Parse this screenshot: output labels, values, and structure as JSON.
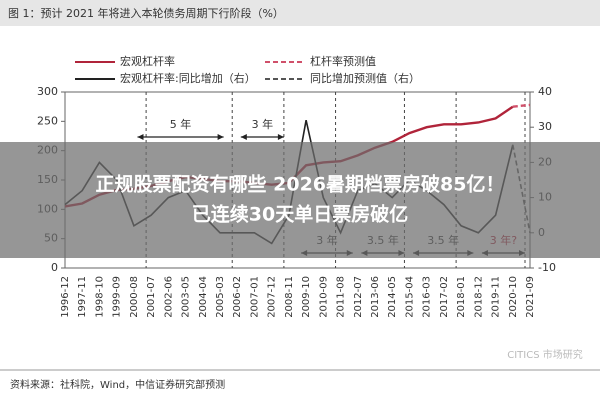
{
  "chart_data": {
    "type": "line",
    "title": "图 1：预计 2021 年将进入本轮债务周期下行阶段（%）",
    "source": "资料来源：社科院，Wind，中信证券研究部预测",
    "watermark": "CITICS 市场研究",
    "overlay": [
      "正规股票配资有哪些 2026暑期档票房破85亿！",
      "已连续30天单日票房破亿"
    ],
    "categories": [
      "1996-12",
      "1997-11",
      "1998-10",
      "1999-09",
      "2000-08",
      "2001-07",
      "2002-06",
      "2003-05",
      "2004-04",
      "2005-03",
      "2006-02",
      "2007-01",
      "2007-12",
      "2008-11",
      "2009-10",
      "2010-09",
      "2011-08",
      "2012-07",
      "2013-06",
      "2014-05",
      "2015-04",
      "2016-03",
      "2017-02",
      "2018-01",
      "2018-12",
      "2019-11",
      "2020-10",
      "2021-09"
    ],
    "series": [
      {
        "name": "宏观杠杆率",
        "color": "#b0243a",
        "dashed": false,
        "values": [
          105,
          110,
          125,
          133,
          135,
          140,
          148,
          155,
          152,
          148,
          148,
          145,
          142,
          145,
          175,
          180,
          182,
          192,
          205,
          215,
          230,
          240,
          245,
          245,
          248,
          255,
          275,
          null
        ]
      },
      {
        "name": "杠杆率预测值",
        "color": "#d0506a",
        "dashed": true,
        "values": [
          null,
          null,
          null,
          null,
          null,
          null,
          null,
          null,
          null,
          null,
          null,
          null,
          null,
          null,
          null,
          null,
          null,
          null,
          null,
          null,
          null,
          null,
          null,
          null,
          null,
          null,
          275,
          278
        ]
      },
      {
        "name": "宏观杠杆率:同比增加（右）",
        "color": "#222222",
        "dashed": false,
        "axis": "y2",
        "values": [
          8,
          12,
          20,
          15,
          2,
          5,
          10,
          12,
          5,
          0,
          0,
          0,
          -3,
          5,
          32,
          10,
          0,
          12,
          14,
          10,
          15,
          12,
          8,
          2,
          0,
          5,
          25,
          null
        ]
      },
      {
        "name": "同比增加预测值（右）",
        "color": "#555555",
        "dashed": true,
        "axis": "y2",
        "values": [
          null,
          null,
          null,
          null,
          null,
          null,
          null,
          null,
          null,
          null,
          null,
          null,
          null,
          null,
          null,
          null,
          null,
          null,
          null,
          null,
          null,
          null,
          null,
          null,
          null,
          null,
          25,
          0
        ]
      }
    ],
    "annotations": [
      "5 年",
      "3 年",
      "3 年",
      "3.5 年",
      "3.5 年",
      "3 年?"
    ],
    "ylim": [
      0,
      300
    ],
    "yticks": [
      0,
      50,
      100,
      150,
      200,
      250,
      300
    ],
    "y2lim": [
      -10,
      40
    ],
    "y2ticks": [
      -10,
      0,
      10,
      20,
      30,
      40
    ]
  }
}
